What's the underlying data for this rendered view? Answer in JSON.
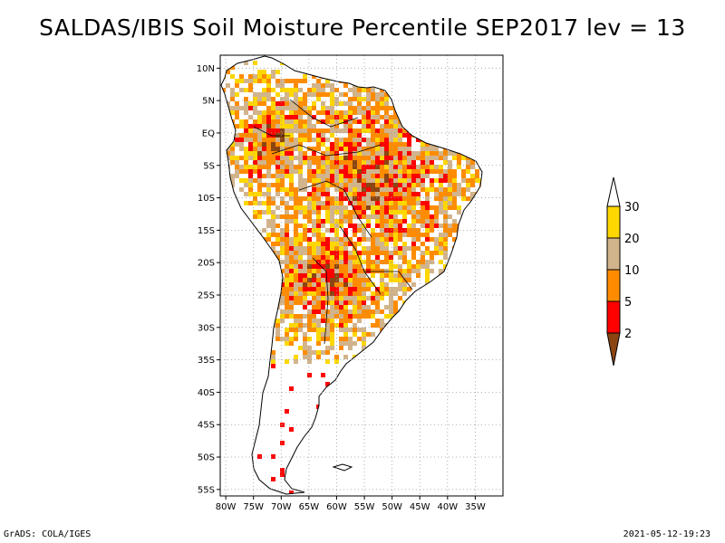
{
  "title": "SALDAS/IBIS Soil Moisture Percentile SEP2017 lev = 13",
  "footer": {
    "credit": "GrADS: COLA/IGES",
    "timestamp": "2021-05-12-19:23"
  },
  "map": {
    "lon_range": [
      -81,
      -30
    ],
    "lat_range": [
      -56,
      12
    ],
    "lat_ticks": [
      {
        "value": 10,
        "label": "10N"
      },
      {
        "value": 5,
        "label": "5N"
      },
      {
        "value": 0,
        "label": "EQ"
      },
      {
        "value": -5,
        "label": "5S"
      },
      {
        "value": -10,
        "label": "10S"
      },
      {
        "value": -15,
        "label": "15S"
      },
      {
        "value": -20,
        "label": "20S"
      },
      {
        "value": -25,
        "label": "25S"
      },
      {
        "value": -30,
        "label": "30S"
      },
      {
        "value": -35,
        "label": "35S"
      },
      {
        "value": -40,
        "label": "40S"
      },
      {
        "value": -45,
        "label": "45S"
      },
      {
        "value": -50,
        "label": "50S"
      },
      {
        "value": -55,
        "label": "55S"
      }
    ],
    "lon_ticks": [
      {
        "value": -80,
        "label": "80W"
      },
      {
        "value": -75,
        "label": "75W"
      },
      {
        "value": -70,
        "label": "70W"
      },
      {
        "value": -65,
        "label": "65W"
      },
      {
        "value": -60,
        "label": "60W"
      },
      {
        "value": -55,
        "label": "55W"
      },
      {
        "value": -50,
        "label": "50W"
      },
      {
        "value": -45,
        "label": "45W"
      },
      {
        "value": -40,
        "label": "40W"
      },
      {
        "value": -35,
        "label": "35W"
      }
    ],
    "grid": true,
    "colors": {
      "below_2": "#8b4513",
      "2_5": "#ff0000",
      "5_10": "#ff8c00",
      "10_20": "#d2b48c",
      "20_30": "#ffd700",
      "above_30": "#ffffff"
    }
  },
  "colorbar": {
    "labels": [
      "2",
      "5",
      "10",
      "20",
      "30"
    ],
    "colors": [
      "#8b4513",
      "#ff0000",
      "#ff8c00",
      "#d2b48c",
      "#ffd700",
      "#ffffff"
    ]
  }
}
